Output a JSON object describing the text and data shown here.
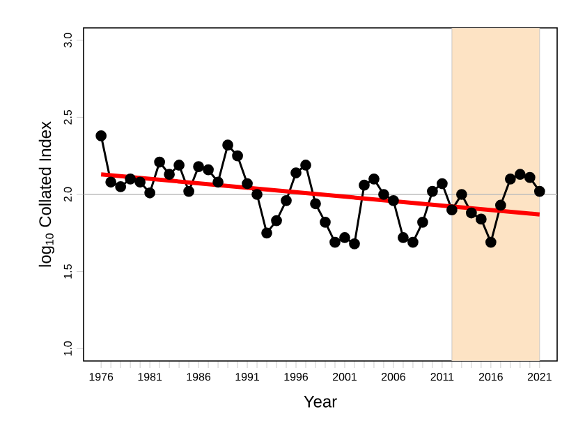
{
  "chart_data": {
    "type": "line",
    "xlabel": "Year",
    "ylabel": "log$_{10}$ Collated Index",
    "xlim": [
      1974.2,
      2022.8
    ],
    "ylim": [
      0.92,
      3.08
    ],
    "xticks": [
      1976,
      {
        "value": 1977,
        "label": null
      },
      {
        "value": 1978,
        "label": null
      },
      {
        "value": 1979,
        "label": null
      },
      {
        "value": 1980,
        "label": null
      },
      1981,
      {
        "value": 1982,
        "label": null
      },
      {
        "value": 1983,
        "label": null
      },
      {
        "value": 1984,
        "label": null
      },
      {
        "value": 1985,
        "label": null
      },
      1986,
      {
        "value": 1987,
        "label": null
      },
      {
        "value": 1988,
        "label": null
      },
      {
        "value": 1989,
        "label": null
      },
      {
        "value": 1990,
        "label": null
      },
      1991,
      {
        "value": 1992,
        "label": null
      },
      {
        "value": 1993,
        "label": null
      },
      {
        "value": 1994,
        "label": null
      },
      {
        "value": 1995,
        "label": null
      },
      1996,
      {
        "value": 1997,
        "label": null
      },
      {
        "value": 1998,
        "label": null
      },
      {
        "value": 1999,
        "label": null
      },
      {
        "value": 2000,
        "label": null
      },
      2001,
      {
        "value": 2002,
        "label": null
      },
      {
        "value": 2003,
        "label": null
      },
      {
        "value": 2004,
        "label": null
      },
      {
        "value": 2005,
        "label": null
      },
      2006,
      {
        "value": 2007,
        "label": null
      },
      {
        "value": 2008,
        "label": null
      },
      {
        "value": 2009,
        "label": null
      },
      {
        "value": 2010,
        "label": null
      },
      2011,
      {
        "value": 2012,
        "label": null
      },
      {
        "value": 2013,
        "label": null
      },
      {
        "value": 2014,
        "label": null
      },
      {
        "value": 2015,
        "label": null
      },
      2016,
      {
        "value": 2017,
        "label": null
      },
      {
        "value": 2018,
        "label": null
      },
      {
        "value": 2019,
        "label": null
      },
      {
        "value": 2020,
        "label": null
      },
      2021
    ],
    "yticks": [
      {
        "value": 1.0,
        "label": "1.0"
      },
      1.5,
      {
        "value": 2.0,
        "label": "2.0"
      },
      2.5,
      {
        "value": 3.0,
        "label": "3.0"
      }
    ],
    "x": [
      1976,
      1977,
      1978,
      1979,
      1980,
      1981,
      1982,
      1983,
      1984,
      1985,
      1986,
      1987,
      1988,
      1989,
      1990,
      1991,
      1992,
      1993,
      1994,
      1995,
      1996,
      1997,
      1998,
      1999,
      2000,
      2001,
      2002,
      2003,
      2004,
      2005,
      2006,
      2007,
      2008,
      2009,
      2010,
      2011,
      2012,
      2013,
      2014,
      2015,
      2016,
      2017,
      2018,
      2019,
      2020,
      2021
    ],
    "series": [
      {
        "color": "#000000",
        "marker": "circle",
        "values": [
          2.38,
          2.08,
          2.05,
          2.1,
          2.08,
          2.01,
          2.21,
          2.13,
          2.19,
          2.02,
          2.18,
          2.16,
          2.08,
          2.32,
          2.25,
          2.07,
          2.0,
          1.75,
          1.83,
          1.96,
          2.14,
          2.19,
          1.94,
          1.82,
          1.69,
          1.72,
          1.68,
          2.06,
          2.1,
          2.0,
          1.96,
          1.72,
          1.69,
          1.82,
          2.02,
          2.07,
          1.9,
          2.0,
          1.88,
          1.84,
          1.69,
          1.93,
          2.1,
          2.13,
          2.11,
          2.02
        ]
      },
      {
        "color": "#ff0000",
        "marker": "none",
        "x": [
          1976,
          2021
        ],
        "values": [
          2.13,
          1.87
        ]
      }
    ],
    "ref_lines": [
      {
        "axis": "y",
        "value": 2.0,
        "color": "#bebebe"
      }
    ],
    "bands": [
      {
        "axis": "x",
        "from": 2012,
        "to": 2021,
        "color": "#fde3c4"
      }
    ]
  }
}
